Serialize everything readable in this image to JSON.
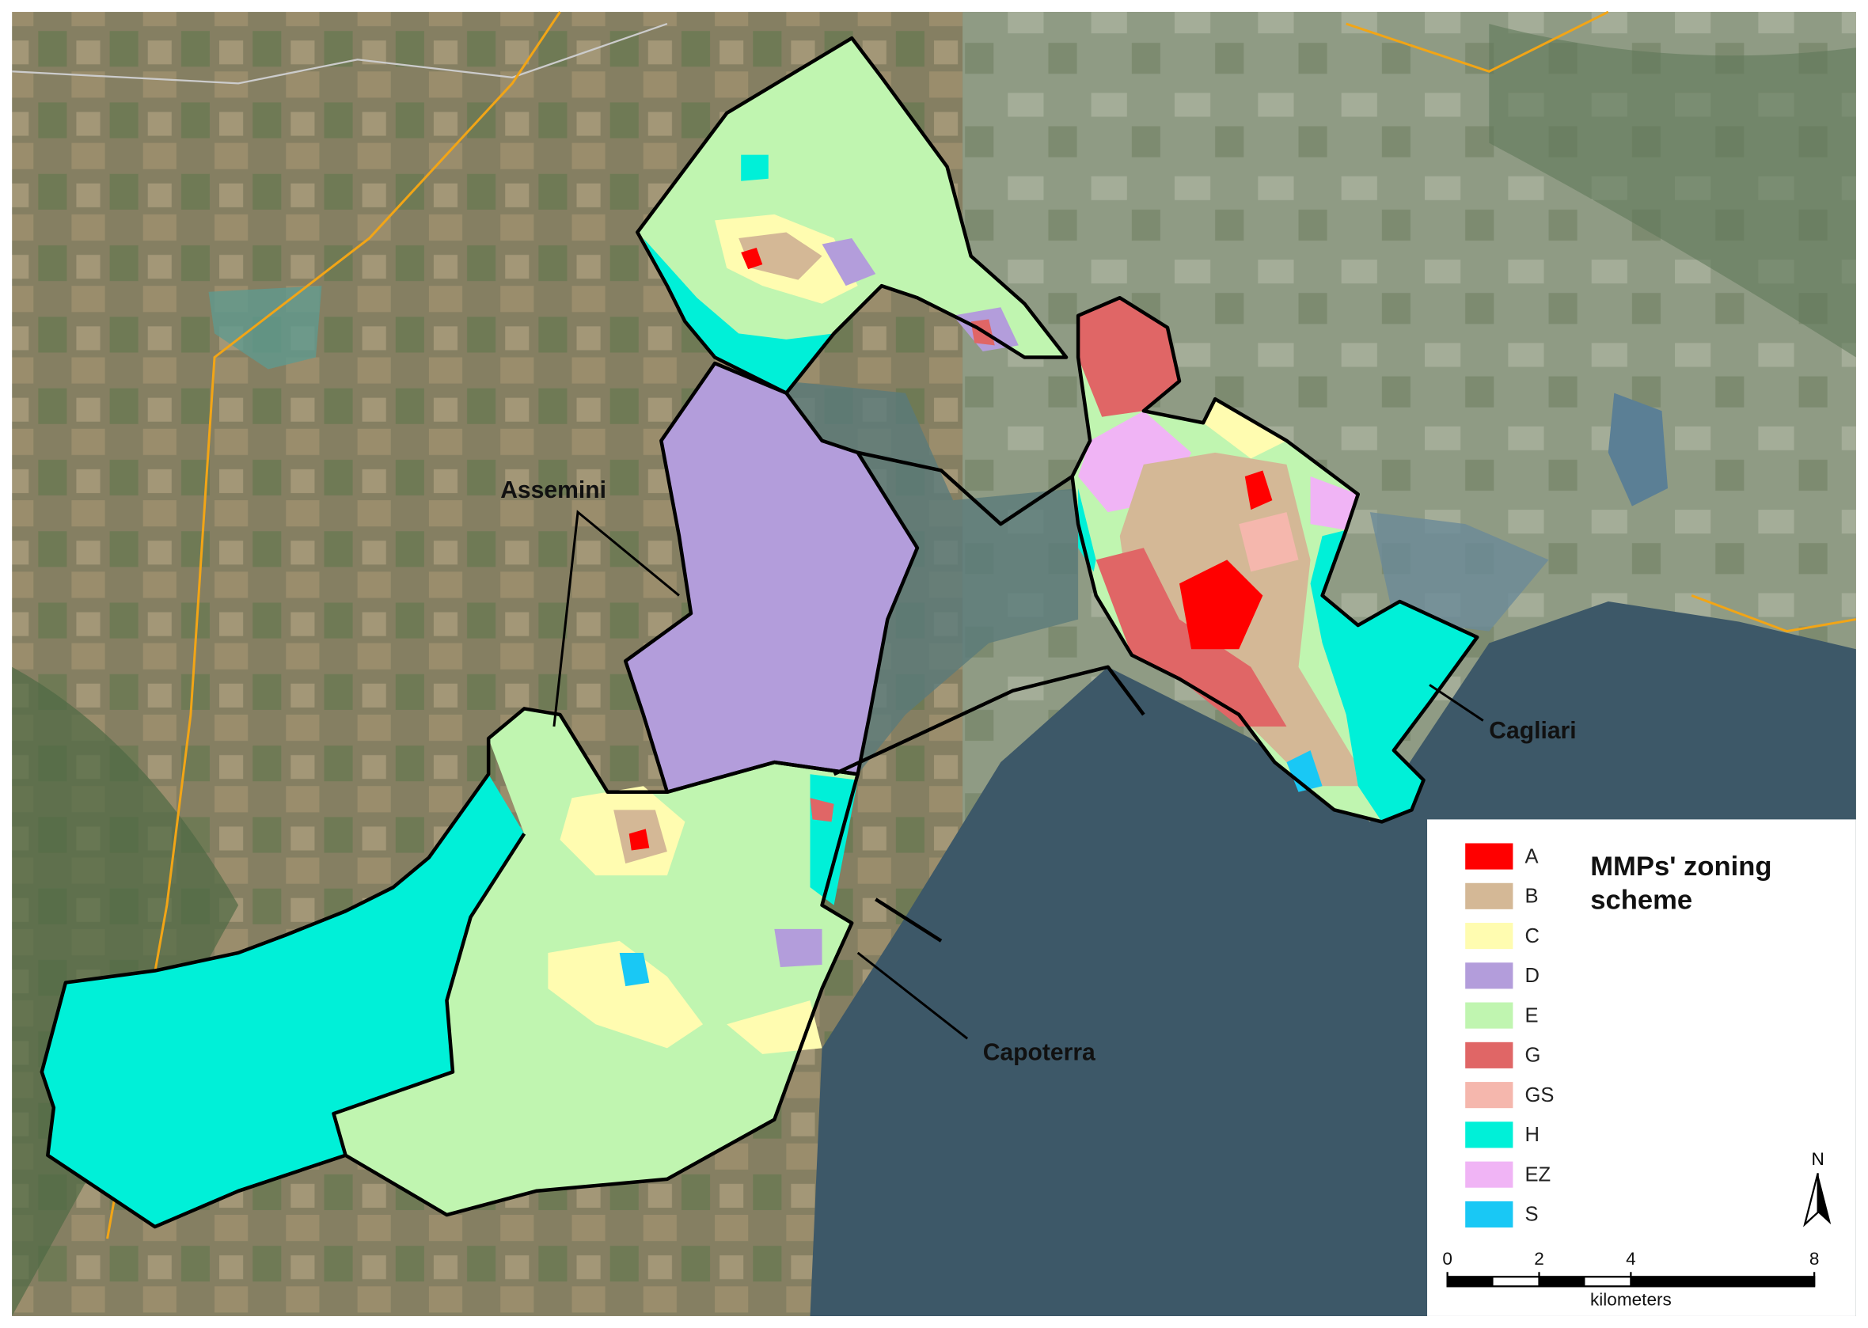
{
  "map": {
    "labels": [
      "Assemini",
      "Capoterra",
      "Cagliari"
    ],
    "legend": {
      "title": "MMPs' zoning scheme",
      "entries": [
        {
          "label": "A",
          "color": "#ff0000"
        },
        {
          "label": "B",
          "color": "#d4b896"
        },
        {
          "label": "C",
          "color": "#fffcb0"
        },
        {
          "label": "D",
          "color": "#b39ddb"
        },
        {
          "label": "E",
          "color": "#c0f5b0"
        },
        {
          "label": "G",
          "color": "#e06666"
        },
        {
          "label": "GS",
          "color": "#f5b7ad"
        },
        {
          "label": "H",
          "color": "#00f0d8"
        },
        {
          "label": "EZ",
          "color": "#f0b4f5"
        },
        {
          "label": "S",
          "color": "#19c8f5"
        }
      ]
    },
    "north": "N",
    "scale_bar": {
      "ticks": [
        0,
        2,
        4,
        8
      ],
      "unit": "kilometers"
    }
  }
}
